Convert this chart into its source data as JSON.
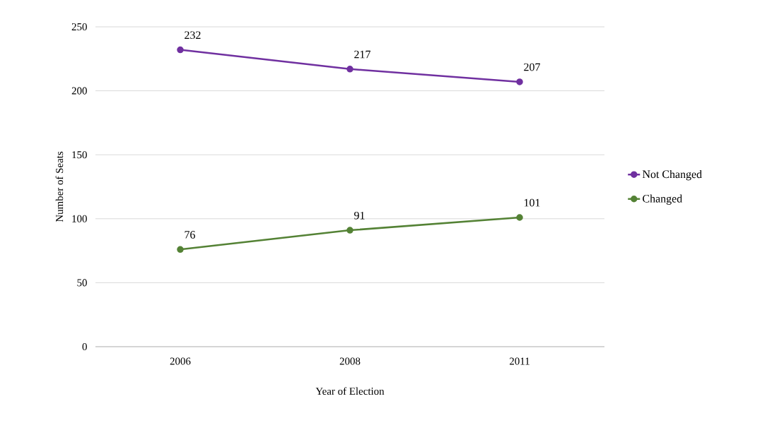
{
  "chart_data": {
    "type": "line",
    "xlabel": "Year of Election",
    "ylabel": "Number of Seats",
    "categories": [
      "2006",
      "2008",
      "2011"
    ],
    "series": [
      {
        "name": "Not Changed",
        "color": "#7030a0",
        "values": [
          232,
          217,
          207
        ]
      },
      {
        "name": "Changed",
        "color": "#548235",
        "values": [
          76,
          91,
          101
        ]
      }
    ],
    "ylim": [
      0,
      250
    ],
    "yticks": [
      0,
      50,
      100,
      150,
      200,
      250
    ],
    "grid": "y",
    "legend": "right",
    "marker": "circle",
    "line_style": "solid",
    "data_labels": true
  }
}
